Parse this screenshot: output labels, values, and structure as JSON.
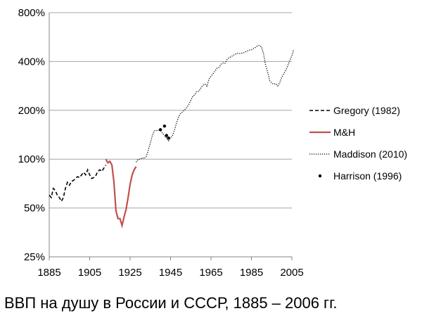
{
  "caption": "ВВП на душу в России и СССР, 1885 – 2006 гг.",
  "chart_data": {
    "type": "line",
    "title": "",
    "xlabel": "",
    "ylabel": "",
    "y_scale": "log",
    "xlim": [
      1885,
      2005
    ],
    "ylim": [
      25,
      800
    ],
    "x_ticks": [
      1885,
      1905,
      1925,
      1945,
      1965,
      1985,
      2005
    ],
    "x_tick_labels": [
      "1885",
      "1905",
      "1925",
      "1945",
      "1965",
      "1985",
      "2005"
    ],
    "y_ticks": [
      25,
      50,
      100,
      200,
      400,
      800
    ],
    "y_tick_labels": [
      "25%",
      "50%",
      "100%",
      "200%",
      "400%",
      "800%"
    ],
    "grid": "horizontal",
    "legend_position": "right",
    "series": [
      {
        "name": "Gregory (1982)",
        "style": "dashed",
        "color": "#000000",
        "points": [
          [
            1885,
            60
          ],
          [
            1886,
            58
          ],
          [
            1887,
            66
          ],
          [
            1888,
            64
          ],
          [
            1889,
            60
          ],
          [
            1890,
            58
          ],
          [
            1891,
            55
          ],
          [
            1892,
            58
          ],
          [
            1893,
            66
          ],
          [
            1894,
            72
          ],
          [
            1895,
            69
          ],
          [
            1896,
            73
          ],
          [
            1897,
            74
          ],
          [
            1898,
            76
          ],
          [
            1899,
            78
          ],
          [
            1900,
            77
          ],
          [
            1901,
            80
          ],
          [
            1902,
            83
          ],
          [
            1903,
            80
          ],
          [
            1904,
            86
          ],
          [
            1905,
            80
          ],
          [
            1906,
            76
          ],
          [
            1907,
            77
          ],
          [
            1908,
            79
          ],
          [
            1909,
            84
          ],
          [
            1910,
            86
          ],
          [
            1911,
            84
          ],
          [
            1912,
            88
          ],
          [
            1913,
            92
          ]
        ]
      },
      {
        "name": "M&H",
        "style": "solid",
        "color": "#c0504d",
        "points": [
          [
            1913,
            100
          ],
          [
            1914,
            95
          ],
          [
            1915,
            97
          ],
          [
            1916,
            92
          ],
          [
            1917,
            72
          ],
          [
            1918,
            48
          ],
          [
            1919,
            43
          ],
          [
            1920,
            43
          ],
          [
            1921,
            39
          ],
          [
            1922,
            44
          ],
          [
            1923,
            49
          ],
          [
            1924,
            58
          ],
          [
            1925,
            70
          ],
          [
            1926,
            80
          ],
          [
            1927,
            86
          ],
          [
            1928,
            90
          ]
        ]
      },
      {
        "name": "Maddison (2010)",
        "style": "dotted",
        "color": "#000000",
        "points": [
          [
            1928,
            96
          ],
          [
            1929,
            100
          ],
          [
            1930,
            100
          ],
          [
            1931,
            102
          ],
          [
            1932,
            101
          ],
          [
            1933,
            104
          ],
          [
            1934,
            114
          ],
          [
            1935,
            126
          ],
          [
            1936,
            140
          ],
          [
            1937,
            150
          ],
          [
            1938,
            150
          ],
          [
            1939,
            151
          ],
          [
            1940,
            150
          ],
          [
            1944,
            130
          ],
          [
            1945,
            135
          ],
          [
            1946,
            140
          ],
          [
            1947,
            152
          ],
          [
            1948,
            168
          ],
          [
            1949,
            182
          ],
          [
            1950,
            192
          ],
          [
            1951,
            196
          ],
          [
            1952,
            202
          ],
          [
            1953,
            208
          ],
          [
            1954,
            217
          ],
          [
            1955,
            230
          ],
          [
            1956,
            244
          ],
          [
            1957,
            250
          ],
          [
            1958,
            262
          ],
          [
            1959,
            262
          ],
          [
            1960,
            275
          ],
          [
            1961,
            286
          ],
          [
            1962,
            290
          ],
          [
            1963,
            282
          ],
          [
            1964,
            312
          ],
          [
            1965,
            324
          ],
          [
            1966,
            336
          ],
          [
            1967,
            350
          ],
          [
            1968,
            364
          ],
          [
            1969,
            368
          ],
          [
            1970,
            385
          ],
          [
            1971,
            392
          ],
          [
            1972,
            390
          ],
          [
            1973,
            414
          ],
          [
            1974,
            424
          ],
          [
            1975,
            428
          ],
          [
            1976,
            437
          ],
          [
            1977,
            444
          ],
          [
            1978,
            450
          ],
          [
            1979,
            448
          ],
          [
            1980,
            450
          ],
          [
            1981,
            452
          ],
          [
            1982,
            458
          ],
          [
            1983,
            465
          ],
          [
            1984,
            470
          ],
          [
            1985,
            472
          ],
          [
            1986,
            482
          ],
          [
            1987,
            488
          ],
          [
            1988,
            500
          ],
          [
            1989,
            503
          ],
          [
            1990,
            490
          ],
          [
            1991,
            445
          ],
          [
            1992,
            380
          ],
          [
            1993,
            345
          ],
          [
            1994,
            305
          ],
          [
            1995,
            295
          ],
          [
            1996,
            290
          ],
          [
            1997,
            292
          ],
          [
            1998,
            283
          ],
          [
            1999,
            296
          ],
          [
            2000,
            320
          ],
          [
            2001,
            337
          ],
          [
            2002,
            353
          ],
          [
            2003,
            378
          ],
          [
            2004,
            405
          ],
          [
            2005,
            435
          ],
          [
            2006,
            475
          ]
        ]
      },
      {
        "name": "Harrison (1996)",
        "style": "markers",
        "color": "#000000",
        "points": [
          [
            1940,
            152
          ],
          [
            1942,
            160
          ],
          [
            1943,
            140
          ],
          [
            1944,
            135
          ]
        ]
      }
    ]
  }
}
